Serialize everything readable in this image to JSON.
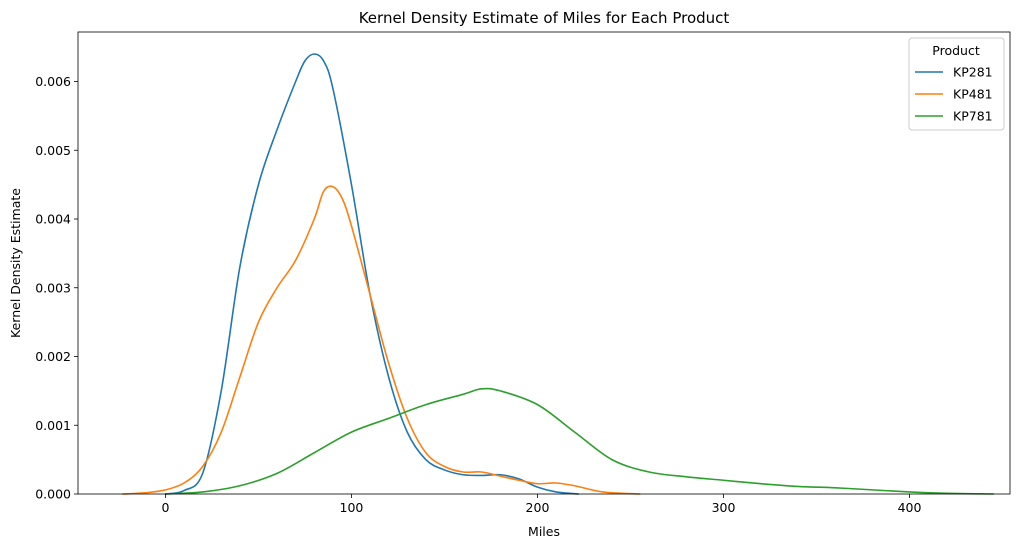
{
  "chart_data": {
    "type": "line",
    "title": "Kernel Density Estimate of Miles for Each Product",
    "xlabel": "Miles",
    "ylabel": "Kernel Density Estimate",
    "xlim": [
      -47,
      454
    ],
    "ylim": [
      0,
      0.00672
    ],
    "xticks": [
      0,
      100,
      200,
      300,
      400
    ],
    "yticks": [
      0.0,
      0.001,
      0.002,
      0.003,
      0.004,
      0.005,
      0.006
    ],
    "ytick_labels": [
      "0.000",
      "0.001",
      "0.002",
      "0.003",
      "0.004",
      "0.005",
      "0.006"
    ],
    "grid": false,
    "legend": {
      "title": "Product",
      "position": "top-right"
    },
    "series": [
      {
        "name": "KP281",
        "color": "#1f77b4",
        "x": [
          0,
          10,
          20,
          30,
          40,
          50,
          60,
          70,
          75,
          80,
          85,
          90,
          100,
          110,
          120,
          130,
          140,
          150,
          160,
          170,
          180,
          190,
          200,
          210,
          222
        ],
        "y": [
          0.0,
          5e-05,
          0.0003,
          0.0015,
          0.0033,
          0.0045,
          0.0053,
          0.006,
          0.0063,
          0.0064,
          0.0063,
          0.0059,
          0.0045,
          0.0029,
          0.0017,
          0.0009,
          0.0005,
          0.00035,
          0.00028,
          0.00027,
          0.00028,
          0.00022,
          0.0001,
          3e-05,
          0.0
        ]
      },
      {
        "name": "KP481",
        "color": "#ff7f0e",
        "x": [
          -23,
          -10,
          0,
          10,
          20,
          30,
          40,
          50,
          60,
          70,
          80,
          85,
          90,
          95,
          100,
          110,
          120,
          130,
          140,
          150,
          160,
          170,
          180,
          190,
          200,
          210,
          220,
          235,
          255
        ],
        "y": [
          0.0,
          2e-05,
          6e-05,
          0.00016,
          0.0004,
          0.0009,
          0.0017,
          0.0025,
          0.003,
          0.0034,
          0.004,
          0.0044,
          0.00447,
          0.0043,
          0.0039,
          0.0029,
          0.0019,
          0.0011,
          0.0006,
          0.0004,
          0.00032,
          0.00032,
          0.00026,
          0.0002,
          0.00015,
          0.00016,
          0.00012,
          3e-05,
          0.0
        ]
      },
      {
        "name": "KP781",
        "color": "#2ca02c",
        "x": [
          0,
          20,
          40,
          60,
          80,
          100,
          120,
          140,
          160,
          170,
          180,
          200,
          220,
          240,
          260,
          280,
          300,
          320,
          340,
          360,
          380,
          400,
          420,
          445
        ],
        "y": [
          0.0,
          3e-05,
          0.00012,
          0.0003,
          0.0006,
          0.0009,
          0.0011,
          0.0013,
          0.00145,
          0.00153,
          0.0015,
          0.0013,
          0.0009,
          0.0005,
          0.00032,
          0.00025,
          0.0002,
          0.00015,
          0.00011,
          9e-05,
          6e-05,
          3e-05,
          1e-05,
          0.0
        ]
      }
    ]
  }
}
